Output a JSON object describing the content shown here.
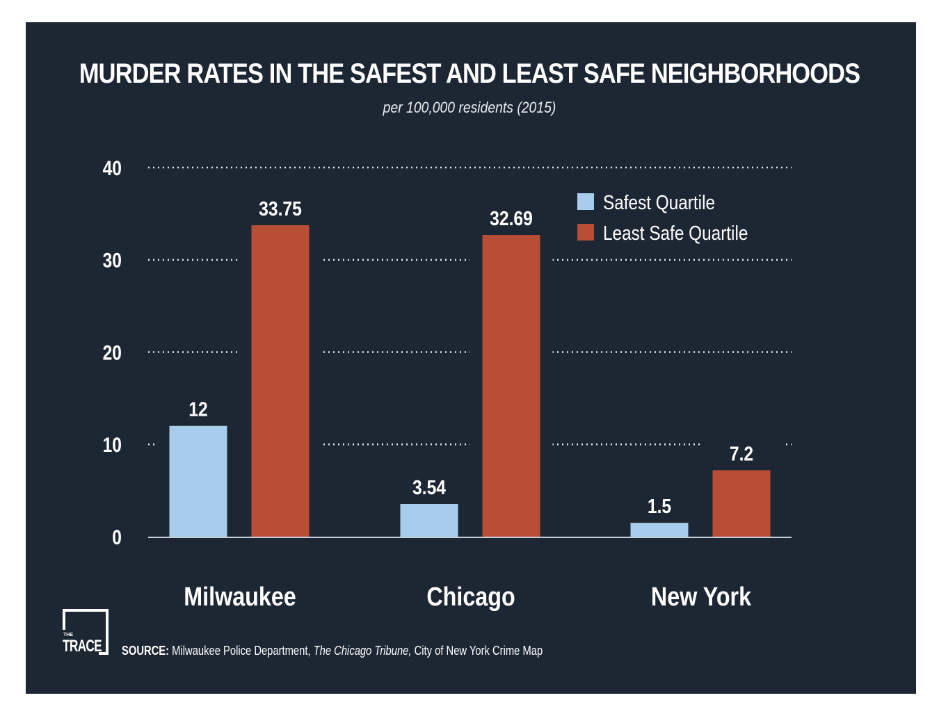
{
  "title": "MURDER RATES IN THE SAFEST AND LEAST SAFE NEIGHBORHOODS",
  "subtitle": "per 100,000 residents (2015)",
  "logo": {
    "small": "THE",
    "text": "TRACE"
  },
  "source": {
    "label": "SOURCE:",
    "part1": "Milwaukee Police Department,",
    "part2": "The Chicago Tribune,",
    "part3": "City of New York Crime Map"
  },
  "colors": {
    "background": "#1d2733",
    "safest": "#a8ccec",
    "least_safe": "#b84e36",
    "text": "#ffffff"
  },
  "chart_data": {
    "type": "bar",
    "title": "MURDER RATES IN THE SAFEST AND LEAST SAFE NEIGHBORHOODS",
    "subtitle": "per 100,000 residents (2015)",
    "categories": [
      "Milwaukee",
      "Chicago",
      "New York"
    ],
    "series": [
      {
        "name": "Safest Quartile",
        "values": [
          12,
          3.54,
          1.5
        ],
        "labels": [
          "12",
          "3.54",
          "1.5"
        ],
        "color": "#a8ccec"
      },
      {
        "name": "Least Safe Quartile",
        "values": [
          33.75,
          32.69,
          7.2
        ],
        "labels": [
          "33.75",
          "32.69",
          "7.2"
        ],
        "color": "#b84e36"
      }
    ],
    "yticks": [
      "0",
      "10",
      "20",
      "30",
      "40"
    ],
    "ylim": [
      0,
      40
    ],
    "grid": true,
    "legend": "top-right"
  }
}
